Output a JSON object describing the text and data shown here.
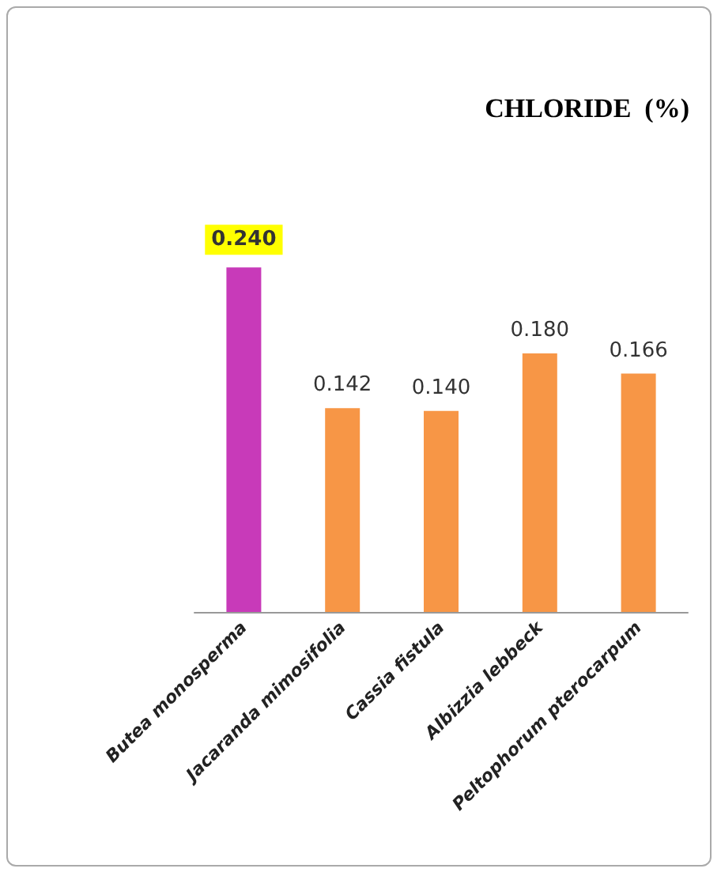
{
  "chart_data": {
    "type": "bar",
    "title": "CHLORIDE  (%)",
    "categories": [
      "Butea monosperma",
      "Jacaranda mimosifolia",
      "Cassia fistula",
      "Albizzia lebbeck",
      "Peltophorum pterocarpum"
    ],
    "values": [
      0.24,
      0.142,
      0.14,
      0.18,
      0.166
    ],
    "colors": [
      "#c83ab9",
      "#f79646",
      "#f79646",
      "#f79646",
      "#f79646"
    ],
    "value_labels": [
      "0.240",
      "0.142",
      "0.140",
      "0.180",
      "0.166"
    ]
  }
}
